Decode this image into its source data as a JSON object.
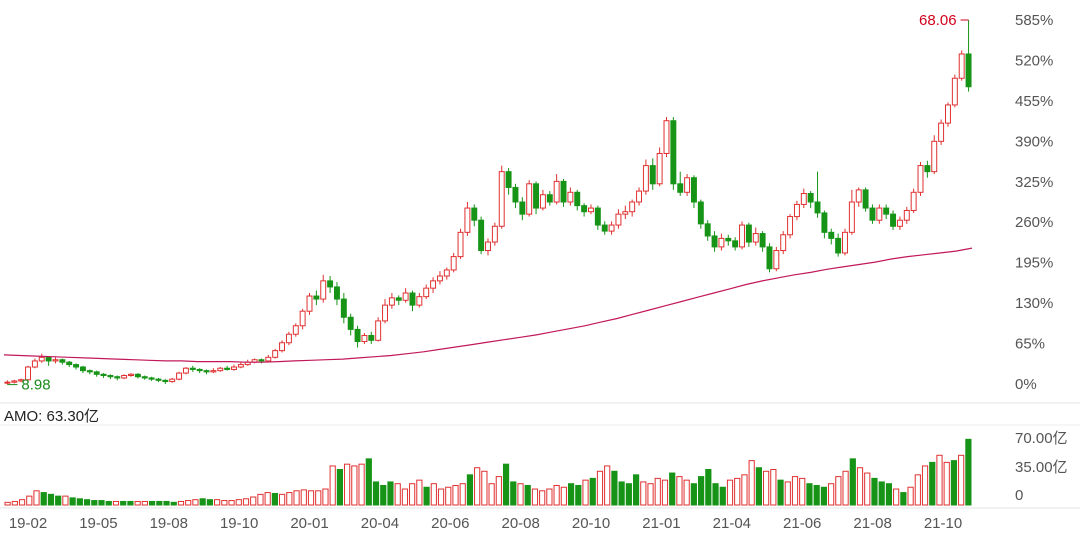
{
  "amo_label": "AMO: 63.30亿",
  "chart_data": [
    {
      "type": "candlestick",
      "x_ticks": [
        "19-02",
        "19-05",
        "19-08",
        "19-10",
        "20-01",
        "20-04",
        "20-06",
        "20-08",
        "20-10",
        "21-01",
        "21-04",
        "21-06",
        "21-08",
        "21-10"
      ],
      "y_ticks": [
        "0%",
        "65%",
        "130%",
        "195%",
        "260%",
        "325%",
        "390%",
        "455%",
        "520%",
        "585%"
      ],
      "ylim": [
        0,
        600
      ],
      "annotations": [
        {
          "label": "68.06",
          "color": "#d0021b",
          "at": "high"
        },
        {
          "label": "8.98",
          "color": "#1a8a1a",
          "at": "low"
        }
      ],
      "colors": {
        "up": "#e03030",
        "down": "#179417",
        "ma": "#c2185b"
      },
      "candles": [
        [
          2,
          3,
          -1,
          6
        ],
        [
          3,
          5,
          1,
          7
        ],
        [
          5,
          7,
          3,
          9
        ],
        [
          7,
          28,
          6,
          30
        ],
        [
          28,
          38,
          26,
          42
        ],
        [
          38,
          44,
          35,
          50
        ],
        [
          44,
          38,
          30,
          46
        ],
        [
          38,
          40,
          34,
          44
        ],
        [
          40,
          36,
          32,
          42
        ],
        [
          36,
          32,
          28,
          38
        ],
        [
          32,
          28,
          24,
          34
        ],
        [
          28,
          22,
          18,
          30
        ],
        [
          22,
          20,
          16,
          24
        ],
        [
          20,
          16,
          12,
          22
        ],
        [
          16,
          14,
          10,
          18
        ],
        [
          14,
          12,
          8,
          16
        ],
        [
          12,
          10,
          6,
          14
        ],
        [
          10,
          14,
          8,
          16
        ],
        [
          14,
          16,
          12,
          18
        ],
        [
          16,
          12,
          9,
          18
        ],
        [
          12,
          10,
          7,
          14
        ],
        [
          10,
          8,
          5,
          12
        ],
        [
          8,
          6,
          3,
          10
        ],
        [
          6,
          4,
          0,
          8
        ],
        [
          4,
          8,
          2,
          10
        ],
        [
          8,
          18,
          6,
          20
        ],
        [
          18,
          26,
          16,
          28
        ],
        [
          26,
          24,
          20,
          30
        ],
        [
          24,
          22,
          18,
          26
        ],
        [
          22,
          20,
          16,
          24
        ],
        [
          20,
          22,
          18,
          26
        ],
        [
          22,
          26,
          20,
          28
        ],
        [
          26,
          24,
          22,
          30
        ],
        [
          24,
          28,
          22,
          32
        ],
        [
          28,
          32,
          26,
          36
        ],
        [
          32,
          36,
          30,
          40
        ],
        [
          36,
          40,
          34,
          42
        ],
        [
          40,
          38,
          34,
          42
        ],
        [
          38,
          44,
          36,
          48
        ],
        [
          44,
          55,
          42,
          58
        ],
        [
          55,
          68,
          52,
          72
        ],
        [
          68,
          82,
          64,
          86
        ],
        [
          82,
          96,
          78,
          100
        ],
        [
          96,
          120,
          90,
          124
        ],
        [
          120,
          145,
          114,
          150
        ],
        [
          145,
          140,
          130,
          154
        ],
        [
          140,
          170,
          134,
          180
        ],
        [
          170,
          160,
          150,
          178
        ],
        [
          160,
          140,
          130,
          168
        ],
        [
          140,
          110,
          100,
          150
        ],
        [
          110,
          90,
          80,
          116
        ],
        [
          90,
          70,
          60,
          96
        ],
        [
          70,
          80,
          66,
          84
        ],
        [
          80,
          72,
          66,
          86
        ],
        [
          72,
          104,
          70,
          110
        ],
        [
          104,
          130,
          100,
          140
        ],
        [
          130,
          142,
          124,
          150
        ],
        [
          142,
          138,
          130,
          146
        ],
        [
          138,
          150,
          134,
          158
        ],
        [
          150,
          130,
          120,
          154
        ],
        [
          130,
          144,
          126,
          150
        ],
        [
          144,
          158,
          140,
          164
        ],
        [
          158,
          170,
          150,
          176
        ],
        [
          170,
          178,
          164,
          186
        ],
        [
          178,
          188,
          172,
          192
        ],
        [
          188,
          210,
          184,
          216
        ],
        [
          210,
          250,
          206,
          256
        ],
        [
          250,
          290,
          244,
          300
        ],
        [
          290,
          270,
          260,
          296
        ],
        [
          270,
          220,
          214,
          276
        ],
        [
          220,
          234,
          212,
          240
        ],
        [
          234,
          260,
          228,
          266
        ],
        [
          260,
          350,
          256,
          360
        ],
        [
          350,
          324,
          312,
          356
        ],
        [
          324,
          300,
          290,
          330
        ],
        [
          300,
          280,
          270,
          308
        ],
        [
          280,
          330,
          276,
          336
        ],
        [
          330,
          290,
          280,
          334
        ],
        [
          290,
          312,
          286,
          320
        ],
        [
          312,
          300,
          294,
          318
        ],
        [
          300,
          334,
          296,
          346
        ],
        [
          334,
          300,
          292,
          338
        ],
        [
          300,
          316,
          294,
          324
        ],
        [
          316,
          294,
          286,
          320
        ],
        [
          294,
          284,
          276,
          298
        ],
        [
          284,
          290,
          280,
          296
        ],
        [
          290,
          262,
          254,
          294
        ],
        [
          262,
          252,
          246,
          268
        ],
        [
          252,
          262,
          246,
          268
        ],
        [
          262,
          280,
          256,
          288
        ],
        [
          280,
          284,
          272,
          294
        ],
        [
          284,
          300,
          276,
          304
        ],
        [
          300,
          318,
          294,
          324
        ],
        [
          318,
          360,
          312,
          370
        ],
        [
          360,
          330,
          320,
          372
        ],
        [
          330,
          380,
          326,
          390
        ],
        [
          380,
          434,
          374,
          440
        ],
        [
          434,
          330,
          320,
          440
        ],
        [
          330,
          316,
          310,
          350
        ],
        [
          316,
          340,
          310,
          346
        ],
        [
          340,
          300,
          290,
          344
        ],
        [
          300,
          264,
          256,
          304
        ],
        [
          264,
          244,
          236,
          270
        ],
        [
          244,
          226,
          218,
          252
        ],
        [
          226,
          240,
          220,
          248
        ],
        [
          240,
          236,
          228,
          246
        ],
        [
          236,
          226,
          220,
          242
        ],
        [
          226,
          262,
          222,
          268
        ],
        [
          262,
          234,
          226,
          266
        ],
        [
          234,
          248,
          228,
          258
        ],
        [
          248,
          226,
          218,
          252
        ],
        [
          226,
          190,
          184,
          232
        ],
        [
          190,
          220,
          186,
          226
        ],
        [
          220,
          246,
          214,
          252
        ],
        [
          246,
          276,
          240,
          280
        ],
        [
          276,
          296,
          270,
          302
        ],
        [
          296,
          314,
          290,
          322
        ],
        [
          314,
          300,
          290,
          318
        ],
        [
          300,
          282,
          274,
          350
        ],
        [
          282,
          250,
          240,
          286
        ],
        [
          250,
          240,
          230,
          256
        ],
        [
          240,
          216,
          210,
          248
        ],
        [
          216,
          250,
          212,
          256
        ],
        [
          250,
          300,
          246,
          320
        ],
        [
          300,
          320,
          292,
          324
        ],
        [
          320,
          290,
          284,
          324
        ],
        [
          290,
          270,
          264,
          296
        ],
        [
          270,
          290,
          264,
          296
        ],
        [
          290,
          280,
          272,
          296
        ],
        [
          280,
          260,
          254,
          286
        ],
        [
          260,
          270,
          254,
          276
        ],
        [
          270,
          286,
          264,
          292
        ],
        [
          286,
          316,
          282,
          322
        ],
        [
          316,
          360,
          310,
          366
        ],
        [
          360,
          350,
          340,
          368
        ],
        [
          350,
          400,
          346,
          410
        ],
        [
          400,
          430,
          394,
          436
        ],
        [
          430,
          460,
          424,
          464
        ],
        [
          460,
          504,
          456,
          510
        ],
        [
          504,
          544,
          500,
          550
        ],
        [
          544,
          490,
          482,
          600
        ]
      ],
      "ma": [
        48,
        47,
        46,
        45,
        44,
        43,
        42,
        41,
        40,
        39,
        38,
        38,
        37,
        37,
        37,
        36,
        36,
        37,
        38,
        39,
        40,
        41,
        43,
        45,
        47,
        50,
        53,
        57,
        61,
        65,
        69,
        73,
        77,
        81,
        86,
        91,
        96,
        102,
        108,
        115,
        122,
        129,
        136,
        143,
        150,
        157,
        164,
        170,
        175,
        180,
        184,
        189,
        193,
        197,
        201,
        206,
        210,
        213,
        216,
        219,
        224
      ]
    },
    {
      "type": "bar",
      "title": "AMO: 63.30亿",
      "y_ticks": [
        "70.00亿",
        "35.00亿",
        "0"
      ],
      "ylim": [
        0,
        80
      ],
      "volumes": [
        [
          3,
          1
        ],
        [
          4,
          1
        ],
        [
          6,
          1
        ],
        [
          10,
          1
        ],
        [
          16,
          1
        ],
        [
          14,
          0
        ],
        [
          12,
          0
        ],
        [
          10,
          0
        ],
        [
          10,
          1
        ],
        [
          8,
          0
        ],
        [
          7,
          0
        ],
        [
          6,
          0
        ],
        [
          5,
          0
        ],
        [
          5,
          0
        ],
        [
          4,
          0
        ],
        [
          4,
          1
        ],
        [
          4,
          0
        ],
        [
          4,
          0
        ],
        [
          4,
          1
        ],
        [
          4,
          1
        ],
        [
          4,
          0
        ],
        [
          4,
          0
        ],
        [
          4,
          0
        ],
        [
          3,
          0
        ],
        [
          4,
          1
        ],
        [
          5,
          1
        ],
        [
          6,
          1
        ],
        [
          7,
          0
        ],
        [
          6,
          0
        ],
        [
          6,
          1
        ],
        [
          5,
          1
        ],
        [
          5,
          1
        ],
        [
          6,
          1
        ],
        [
          7,
          1
        ],
        [
          9,
          1
        ],
        [
          12,
          1
        ],
        [
          14,
          1
        ],
        [
          13,
          0
        ],
        [
          12,
          1
        ],
        [
          14,
          1
        ],
        [
          16,
          1
        ],
        [
          17,
          1
        ],
        [
          16,
          1
        ],
        [
          16,
          1
        ],
        [
          18,
          1
        ],
        [
          44,
          1
        ],
        [
          40,
          0
        ],
        [
          46,
          1
        ],
        [
          44,
          1
        ],
        [
          46,
          1
        ],
        [
          52,
          0
        ],
        [
          26,
          0
        ],
        [
          22,
          0
        ],
        [
          26,
          0
        ],
        [
          24,
          1
        ],
        [
          18,
          1
        ],
        [
          24,
          1
        ],
        [
          28,
          1
        ],
        [
          20,
          0
        ],
        [
          24,
          1
        ],
        [
          18,
          1
        ],
        [
          20,
          1
        ],
        [
          22,
          1
        ],
        [
          24,
          1
        ],
        [
          34,
          0
        ],
        [
          42,
          1
        ],
        [
          38,
          1
        ],
        [
          24,
          1
        ],
        [
          32,
          1
        ],
        [
          46,
          0
        ],
        [
          26,
          0
        ],
        [
          24,
          1
        ],
        [
          22,
          0
        ],
        [
          18,
          1
        ],
        [
          16,
          1
        ],
        [
          18,
          1
        ],
        [
          22,
          1
        ],
        [
          20,
          1
        ],
        [
          24,
          0
        ],
        [
          22,
          0
        ],
        [
          28,
          1
        ],
        [
          30,
          0
        ],
        [
          38,
          1
        ],
        [
          44,
          1
        ],
        [
          38,
          0
        ],
        [
          26,
          0
        ],
        [
          24,
          0
        ],
        [
          34,
          0
        ],
        [
          26,
          1
        ],
        [
          24,
          1
        ],
        [
          30,
          1
        ],
        [
          28,
          1
        ],
        [
          36,
          0
        ],
        [
          32,
          1
        ],
        [
          28,
          1
        ],
        [
          24,
          0
        ],
        [
          32,
          0
        ],
        [
          40,
          0
        ],
        [
          24,
          0
        ],
        [
          20,
          0
        ],
        [
          28,
          1
        ],
        [
          30,
          1
        ],
        [
          34,
          1
        ],
        [
          50,
          1
        ],
        [
          42,
          0
        ],
        [
          38,
          1
        ],
        [
          40,
          1
        ],
        [
          28,
          0
        ],
        [
          26,
          1
        ],
        [
          32,
          1
        ],
        [
          30,
          1
        ],
        [
          24,
          0
        ],
        [
          22,
          0
        ],
        [
          20,
          0
        ],
        [
          24,
          1
        ],
        [
          32,
          1
        ],
        [
          38,
          1
        ],
        [
          52,
          0
        ],
        [
          42,
          1
        ],
        [
          36,
          1
        ],
        [
          30,
          0
        ],
        [
          26,
          0
        ],
        [
          24,
          0
        ],
        [
          18,
          1
        ],
        [
          14,
          0
        ],
        [
          20,
          1
        ],
        [
          34,
          1
        ],
        [
          44,
          1
        ],
        [
          48,
          0
        ],
        [
          56,
          1
        ],
        [
          48,
          1
        ],
        [
          50,
          0
        ],
        [
          56,
          1
        ],
        [
          74,
          0
        ]
      ]
    }
  ]
}
